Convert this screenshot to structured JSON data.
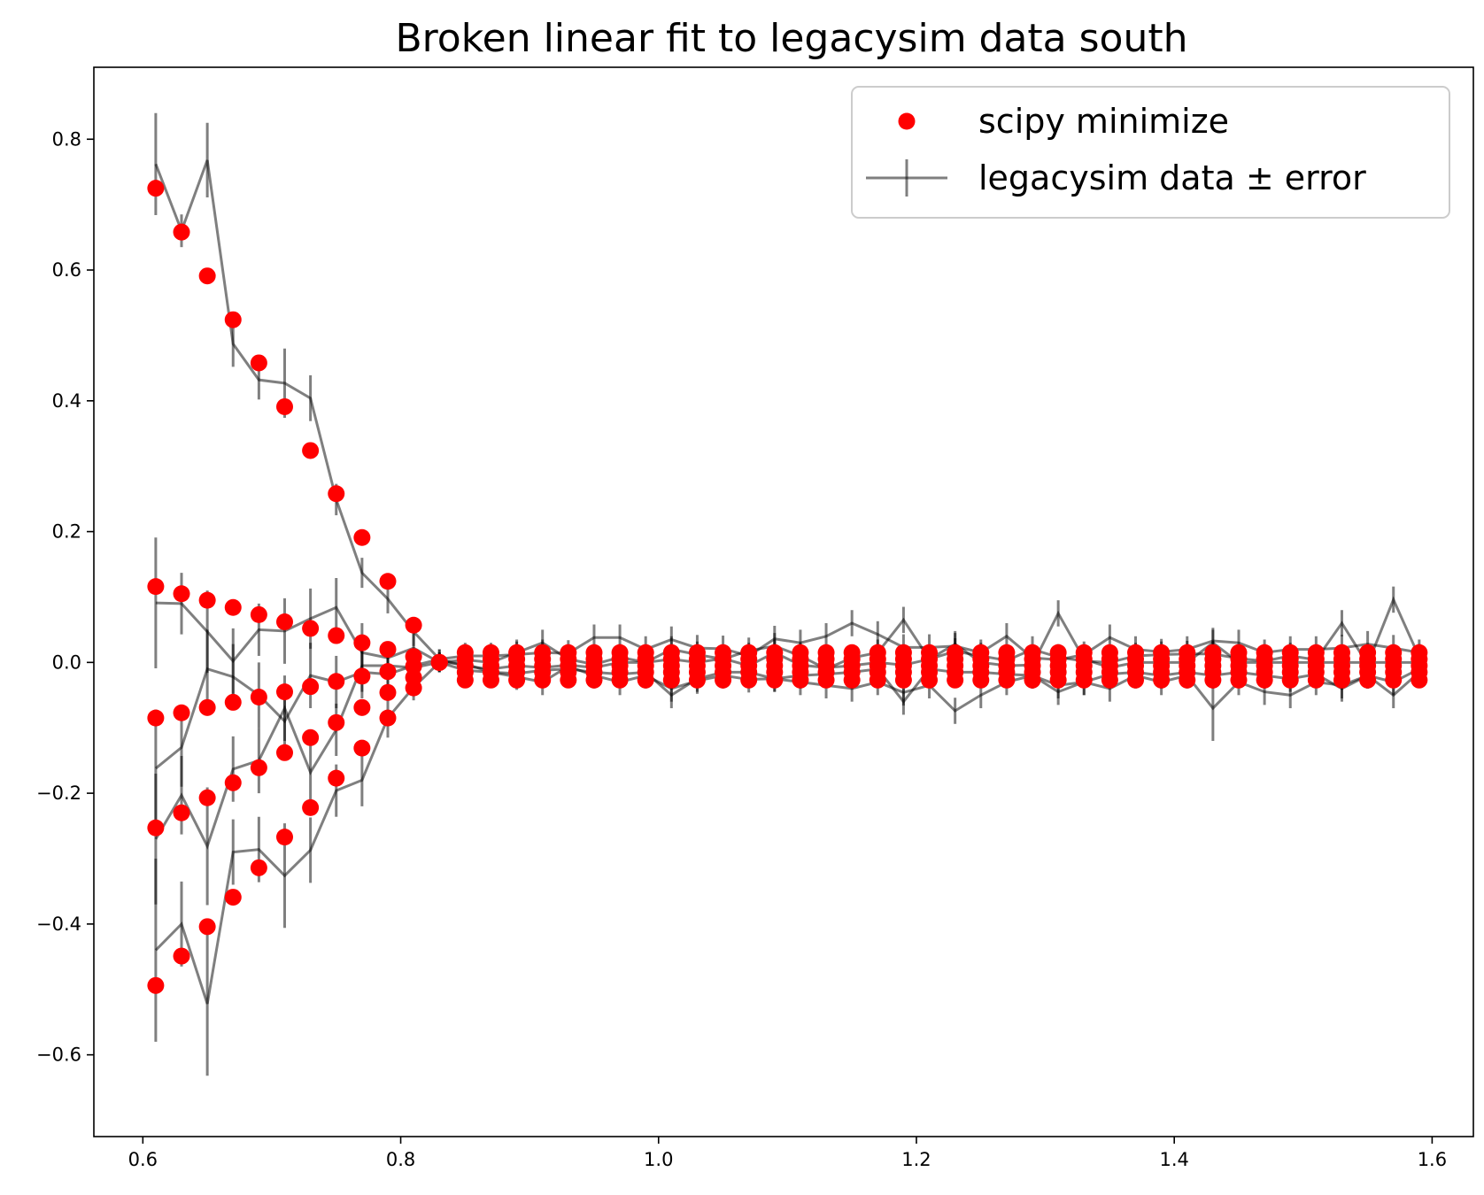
{
  "chart_data": {
    "type": "scatter",
    "title": "Broken linear fit to legacysim data south",
    "xlabel": "",
    "ylabel": "",
    "xlim": [
      0.562,
      1.632
    ],
    "ylim": [
      -0.725,
      0.91
    ],
    "xticks": [
      0.6,
      0.8,
      1.0,
      1.2,
      1.4,
      1.6
    ],
    "yticks": [
      -0.6,
      -0.4,
      -0.2,
      0.0,
      0.2,
      0.4,
      0.6,
      0.8
    ],
    "xtick_labels": [
      "0.6",
      "0.8",
      "1.0",
      "1.2",
      "1.4",
      "1.6"
    ],
    "ytick_labels": [
      "−0.6",
      "−0.4",
      "−0.2",
      "0.0",
      "0.2",
      "0.4",
      "0.6",
      "0.8"
    ],
    "grid": false,
    "legend": {
      "placement": "top-right",
      "entries": [
        "scipy minimize",
        "legacysim data ± error"
      ]
    },
    "colors": {
      "fit": "#ff0000",
      "data": "#000000"
    },
    "x": [
      0.61,
      0.63,
      0.65,
      0.67,
      0.69,
      0.71,
      0.73,
      0.75,
      0.77,
      0.79,
      0.81,
      0.83,
      0.85,
      0.87,
      0.89,
      0.91,
      0.93,
      0.95,
      0.97,
      0.99,
      1.01,
      1.03,
      1.05,
      1.07,
      1.09,
      1.11,
      1.13,
      1.15,
      1.17,
      1.19,
      1.21,
      1.23,
      1.25,
      1.27,
      1.29,
      1.31,
      1.33,
      1.35,
      1.37,
      1.39,
      1.41,
      1.43,
      1.45,
      1.47,
      1.49,
      1.51,
      1.53,
      1.55,
      1.57,
      1.59
    ],
    "series": [
      {
        "name": "scipy minimize",
        "kind": "points",
        "curves": [
          [
            0.725,
            0.658,
            0.591,
            0.524,
            0.458,
            0.391,
            0.324,
            0.258,
            0.191,
            0.124,
            0.057,
            0.0,
            0.015,
            0.015,
            0.015,
            0.015,
            0.015,
            0.015,
            0.015,
            0.015,
            0.015,
            0.015,
            0.015,
            0.015,
            0.015,
            0.015,
            0.015,
            0.015,
            0.015,
            0.015,
            0.015,
            0.015,
            0.015,
            0.015,
            0.015,
            0.015,
            0.015,
            0.015,
            0.015,
            0.015,
            0.015,
            0.015,
            0.015,
            0.015,
            0.015,
            0.015,
            0.015,
            0.015,
            0.015,
            0.015
          ],
          [
            0.116,
            0.105,
            0.095,
            0.084,
            0.073,
            0.062,
            0.052,
            0.041,
            0.03,
            0.02,
            0.009,
            0.0,
            0.005,
            0.005,
            0.005,
            0.005,
            0.005,
            0.005,
            0.005,
            0.005,
            0.005,
            0.005,
            0.005,
            0.005,
            0.005,
            0.005,
            0.005,
            0.005,
            0.005,
            0.005,
            0.005,
            0.005,
            0.005,
            0.005,
            0.005,
            0.005,
            0.005,
            0.005,
            0.005,
            0.005,
            0.005,
            0.005,
            0.005,
            0.005,
            0.005,
            0.005,
            0.005,
            0.005,
            0.005,
            0.005
          ],
          [
            -0.085,
            -0.077,
            -0.069,
            -0.061,
            -0.053,
            -0.045,
            -0.037,
            -0.029,
            -0.021,
            -0.014,
            -0.006,
            0.0,
            -0.005,
            -0.005,
            -0.005,
            -0.005,
            -0.005,
            -0.005,
            -0.005,
            -0.005,
            -0.005,
            -0.005,
            -0.005,
            -0.005,
            -0.005,
            -0.005,
            -0.005,
            -0.005,
            -0.005,
            -0.005,
            -0.005,
            -0.005,
            -0.005,
            -0.005,
            -0.005,
            -0.005,
            -0.005,
            -0.005,
            -0.005,
            -0.005,
            -0.005,
            -0.005,
            -0.005,
            -0.005,
            -0.005,
            -0.005,
            -0.005,
            -0.005,
            -0.005,
            -0.005
          ],
          [
            -0.253,
            -0.23,
            -0.207,
            -0.184,
            -0.161,
            -0.138,
            -0.115,
            -0.092,
            -0.069,
            -0.046,
            -0.023,
            0.0,
            -0.015,
            -0.015,
            -0.015,
            -0.015,
            -0.015,
            -0.015,
            -0.015,
            -0.015,
            -0.015,
            -0.015,
            -0.015,
            -0.015,
            -0.015,
            -0.015,
            -0.015,
            -0.015,
            -0.015,
            -0.015,
            -0.015,
            -0.015,
            -0.015,
            -0.015,
            -0.015,
            -0.015,
            -0.015,
            -0.015,
            -0.015,
            -0.015,
            -0.015,
            -0.015,
            -0.015,
            -0.015,
            -0.015,
            -0.015,
            -0.015,
            -0.015,
            -0.015,
            -0.015
          ],
          [
            -0.494,
            -0.449,
            -0.404,
            -0.359,
            -0.314,
            -0.267,
            -0.222,
            -0.177,
            -0.131,
            -0.085,
            -0.039,
            0.0,
            -0.027,
            -0.027,
            -0.027,
            -0.027,
            -0.027,
            -0.027,
            -0.027,
            -0.027,
            -0.027,
            -0.027,
            -0.027,
            -0.027,
            -0.027,
            -0.027,
            -0.027,
            -0.027,
            -0.027,
            -0.027,
            -0.027,
            -0.027,
            -0.027,
            -0.027,
            -0.027,
            -0.027,
            -0.027,
            -0.027,
            -0.027,
            -0.027,
            -0.027,
            -0.027,
            -0.027,
            -0.027,
            -0.027,
            -0.027,
            -0.027,
            -0.027,
            -0.027,
            -0.027
          ]
        ]
      },
      {
        "name": "legacysim data ± error",
        "kind": "errorbar-lines",
        "curves": [
          {
            "y": [
              0.762,
              0.66,
              0.768,
              0.487,
              0.432,
              0.427,
              0.404,
              0.249,
              0.137,
              0.097,
              0.047,
              0.005,
              0.01,
              0.01,
              0.012,
              0.015,
              0.014,
              0.038,
              0.038,
              0.02,
              0.035,
              0.022,
              0.021,
              0.01,
              0.036,
              0.03,
              0.04,
              0.06,
              0.043,
              0.023,
              0.023,
              0.025,
              0.015,
              0.04,
              0.007,
              0.004,
              0.012,
              0.038,
              0.02,
              0.016,
              0.02,
              0.033,
              0.03,
              0.015,
              0.02,
              0.02,
              0.022,
              0.028,
              0.022,
              0.015
            ],
            "err": [
              0.078,
              0.025,
              0.057,
              0.035,
              0.03,
              0.053,
              0.035,
              0.024,
              0.023,
              0.022,
              0.022,
              0.015,
              0.02,
              0.02,
              0.02,
              0.02,
              0.02,
              0.02,
              0.02,
              0.02,
              0.02,
              0.02,
              0.02,
              0.02,
              0.02,
              0.02,
              0.02,
              0.02,
              0.02,
              0.02,
              0.02,
              0.02,
              0.02,
              0.02,
              0.02,
              0.02,
              0.02,
              0.02,
              0.02,
              0.02,
              0.02,
              0.02,
              0.02,
              0.02,
              0.02,
              0.02,
              0.02,
              0.02,
              0.02,
              0.02
            ]
          },
          {
            "y": [
              0.091,
              0.09,
              0.047,
              0.002,
              0.05,
              0.048,
              0.067,
              0.084,
              0.015,
              0.007,
              0.022,
              0.0,
              0.004,
              0.0,
              0.015,
              0.03,
              0.005,
              -0.003,
              0.008,
              0.0,
              0.02,
              0.012,
              0.005,
              0.018,
              0.025,
              0.01,
              -0.01,
              0.007,
              0.015,
              0.065,
              0.005,
              0.017,
              0.01,
              0.003,
              0.02,
              0.008,
              0.002,
              0.0,
              0.01,
              0.012,
              0.013,
              0.013,
              0.006,
              0.002,
              0.01,
              0.004,
              0.06,
              -0.003,
              0.096,
              0.008
            ],
            "err": [
              0.1,
              0.047,
              0.063,
              0.05,
              0.04,
              0.05,
              0.046,
              0.045,
              0.045,
              0.025,
              0.025,
              0.015,
              0.02,
              0.02,
              0.02,
              0.02,
              0.02,
              0.02,
              0.02,
              0.02,
              0.02,
              0.02,
              0.02,
              0.02,
              0.02,
              0.02,
              0.02,
              0.02,
              0.02,
              0.02,
              0.02,
              0.02,
              0.02,
              0.02,
              0.02,
              0.02,
              0.02,
              0.02,
              0.02,
              0.02,
              0.02,
              0.02,
              0.02,
              0.02,
              0.02,
              0.02,
              0.02,
              0.02,
              0.02,
              0.02
            ]
          },
          {
            "y": [
              -0.162,
              -0.13,
              -0.01,
              -0.022,
              -0.05,
              -0.09,
              -0.02,
              -0.03,
              -0.015,
              -0.018,
              -0.005,
              0.005,
              -0.006,
              -0.01,
              -0.005,
              -0.008,
              -0.004,
              -0.008,
              0.0,
              0.0,
              0.005,
              0.0,
              0.006,
              -0.005,
              0.015,
              -0.004,
              -0.008,
              -0.005,
              0.0,
              -0.004,
              0.005,
              0.028,
              0.0,
              -0.005,
              -0.004,
              0.075,
              0.005,
              -0.008,
              0.0,
              0.0,
              0.0,
              0.03,
              0.0,
              0.0,
              0.0,
              0.0,
              0.0,
              0.0,
              0.0,
              0.0
            ],
            "err": [
              0.09,
              0.06,
              0.06,
              0.05,
              0.05,
              0.05,
              0.05,
              0.04,
              0.04,
              0.03,
              0.02,
              0.015,
              0.02,
              0.02,
              0.02,
              0.02,
              0.02,
              0.02,
              0.02,
              0.02,
              0.02,
              0.02,
              0.02,
              0.02,
              0.02,
              0.02,
              0.02,
              0.02,
              0.02,
              0.02,
              0.02,
              0.02,
              0.02,
              0.02,
              0.02,
              0.02,
              0.02,
              0.02,
              0.02,
              0.02,
              0.02,
              0.02,
              0.02,
              0.02,
              0.02,
              0.02,
              0.02,
              0.02,
              0.02,
              0.02
            ]
          },
          {
            "y": [
              -0.27,
              -0.203,
              -0.281,
              -0.163,
              -0.15,
              -0.07,
              -0.168,
              -0.103,
              -0.005,
              -0.005,
              -0.008,
              0.0,
              -0.002,
              -0.015,
              -0.022,
              -0.03,
              -0.006,
              -0.02,
              -0.03,
              -0.02,
              -0.04,
              -0.028,
              -0.02,
              -0.026,
              -0.025,
              -0.03,
              -0.035,
              -0.04,
              -0.03,
              -0.046,
              -0.035,
              -0.074,
              -0.05,
              -0.03,
              -0.02,
              -0.035,
              -0.03,
              -0.04,
              -0.02,
              -0.03,
              -0.02,
              -0.07,
              -0.03,
              -0.045,
              -0.05,
              -0.03,
              -0.035,
              -0.02,
              -0.03,
              -0.01
            ],
            "err": [
              0.1,
              0.06,
              0.09,
              0.05,
              0.05,
              0.05,
              0.05,
              0.04,
              0.04,
              0.03,
              0.02,
              0.015,
              0.02,
              0.02,
              0.02,
              0.02,
              0.02,
              0.02,
              0.02,
              0.02,
              0.02,
              0.02,
              0.02,
              0.02,
              0.02,
              0.02,
              0.02,
              0.02,
              0.02,
              0.02,
              0.02,
              0.02,
              0.02,
              0.02,
              0.02,
              0.02,
              0.02,
              0.02,
              0.02,
              0.02,
              0.02,
              0.05,
              0.02,
              0.02,
              0.02,
              0.02,
              0.02,
              0.02,
              0.02,
              0.02
            ]
          },
          {
            "y": [
              -0.44,
              -0.4,
              -0.522,
              -0.29,
              -0.286,
              -0.326,
              -0.287,
              -0.196,
              -0.18,
              -0.085,
              -0.038,
              0.0,
              -0.012,
              -0.015,
              -0.017,
              -0.012,
              -0.01,
              -0.015,
              -0.018,
              -0.015,
              -0.05,
              -0.025,
              -0.015,
              -0.015,
              -0.025,
              -0.02,
              -0.018,
              -0.015,
              -0.01,
              -0.06,
              -0.01,
              -0.015,
              -0.015,
              -0.018,
              -0.02,
              -0.045,
              -0.03,
              -0.018,
              -0.015,
              -0.02,
              -0.015,
              -0.02,
              -0.015,
              -0.02,
              -0.025,
              -0.018,
              -0.04,
              -0.02,
              -0.05,
              -0.015
            ],
            "err": [
              0.14,
              0.065,
              0.11,
              0.05,
              0.05,
              0.08,
              0.05,
              0.04,
              0.04,
              0.03,
              0.02,
              0.015,
              0.02,
              0.02,
              0.02,
              0.02,
              0.02,
              0.02,
              0.02,
              0.02,
              0.02,
              0.02,
              0.02,
              0.02,
              0.02,
              0.02,
              0.02,
              0.02,
              0.02,
              0.02,
              0.02,
              0.02,
              0.02,
              0.02,
              0.02,
              0.02,
              0.02,
              0.02,
              0.02,
              0.02,
              0.02,
              0.02,
              0.02,
              0.02,
              0.02,
              0.02,
              0.02,
              0.02,
              0.02,
              0.02
            ]
          }
        ]
      }
    ]
  }
}
